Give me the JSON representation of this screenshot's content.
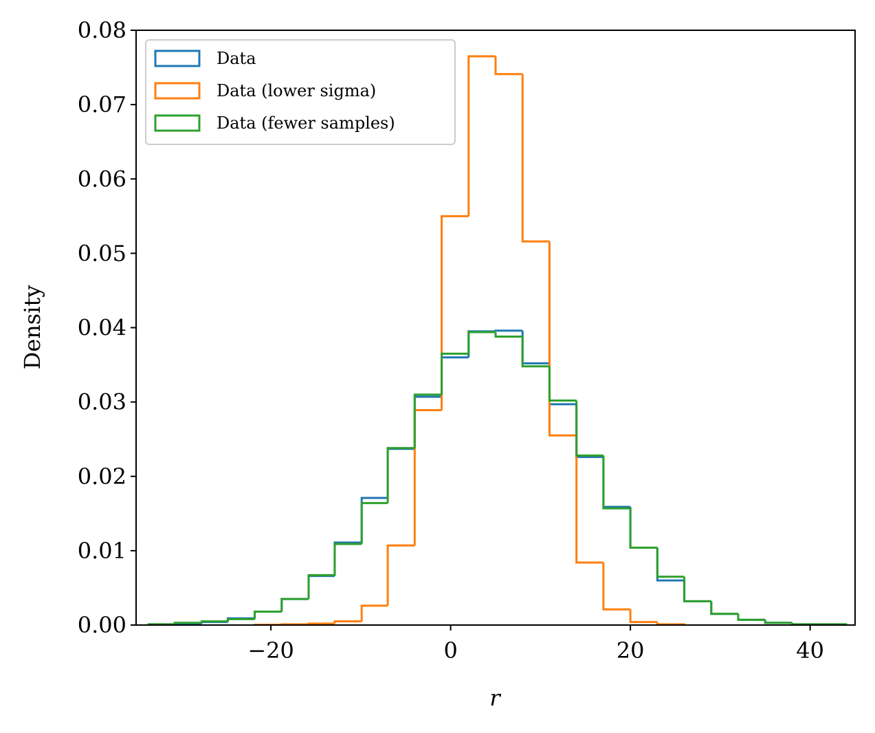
{
  "chart_data": {
    "type": "histogram",
    "xlabel": "r",
    "ylabel": "Density",
    "xlim": [
      -35,
      45
    ],
    "ylim": [
      0,
      0.08
    ],
    "x_ticks": [
      {
        "value": -20,
        "label": "−20"
      },
      {
        "value": 0,
        "label": "0"
      },
      {
        "value": 20,
        "label": "20"
      },
      {
        "value": 40,
        "label": "40"
      }
    ],
    "y_ticks": [
      {
        "value": 0.0,
        "label": "0.00"
      },
      {
        "value": 0.01,
        "label": "0.01"
      },
      {
        "value": 0.02,
        "label": "0.02"
      },
      {
        "value": 0.03,
        "label": "0.03"
      },
      {
        "value": 0.04,
        "label": "0.04"
      },
      {
        "value": 0.05,
        "label": "0.05"
      },
      {
        "value": 0.06,
        "label": "0.06"
      },
      {
        "value": 0.07,
        "label": "0.07"
      },
      {
        "value": 0.08,
        "label": "0.08"
      }
    ],
    "legend_position": "top-left",
    "grid": false,
    "series": [
      {
        "name": "Data",
        "color": "#1f77b4",
        "bin_edges": [
          -33.6,
          -30.7,
          -27.7,
          -24.8,
          -21.8,
          -18.8,
          -15.8,
          -12.9,
          -9.9,
          -7.0,
          -4.0,
          -1.0,
          2.0,
          5.0,
          8.0,
          11.0,
          14.0,
          17.0,
          20.0,
          23.0,
          26.0,
          29.0,
          32.0,
          35.0,
          38.0,
          41.0,
          44.0
        ],
        "values": [
          0.0001,
          0.0002,
          0.0004,
          0.0009,
          0.0018,
          0.0035,
          0.0066,
          0.0111,
          0.0171,
          0.0237,
          0.0307,
          0.036,
          0.0395,
          0.0396,
          0.0352,
          0.0297,
          0.0226,
          0.0159,
          0.0104,
          0.006,
          0.0032,
          0.0015,
          0.0007,
          0.0003,
          0.0001,
          0.0001
        ]
      },
      {
        "name": "Data (lower sigma)",
        "color": "#ff7f0e",
        "bin_edges": [
          -21.8,
          -18.8,
          -15.8,
          -12.9,
          -9.9,
          -7.0,
          -4.0,
          -1.0,
          2.0,
          5.0,
          8.0,
          11.0,
          14.0,
          17.0,
          20.0,
          23.0,
          26.0
        ],
        "values": [
          5e-05,
          0.0001,
          0.0002,
          0.0005,
          0.0026,
          0.0107,
          0.0289,
          0.055,
          0.0765,
          0.0741,
          0.0516,
          0.0255,
          0.0084,
          0.0021,
          0.0004,
          0.0001
        ]
      },
      {
        "name": "Data (fewer samples)",
        "color": "#2ca02c",
        "bin_edges": [
          -33.6,
          -30.7,
          -27.7,
          -24.8,
          -21.8,
          -18.8,
          -15.8,
          -12.9,
          -9.9,
          -7.0,
          -4.0,
          -1.0,
          2.0,
          5.0,
          8.0,
          11.0,
          14.0,
          17.0,
          20.0,
          23.0,
          26.0,
          29.0,
          32.0,
          35.0,
          38.0,
          41.0,
          44.0
        ],
        "values": [
          0.0001,
          0.0003,
          0.0005,
          0.0008,
          0.0018,
          0.0035,
          0.0067,
          0.0109,
          0.0164,
          0.0238,
          0.031,
          0.0365,
          0.0394,
          0.0388,
          0.0348,
          0.0302,
          0.0228,
          0.0157,
          0.0104,
          0.0065,
          0.0032,
          0.0015,
          0.0007,
          0.0003,
          0.0001,
          0.0001
        ]
      }
    ]
  }
}
